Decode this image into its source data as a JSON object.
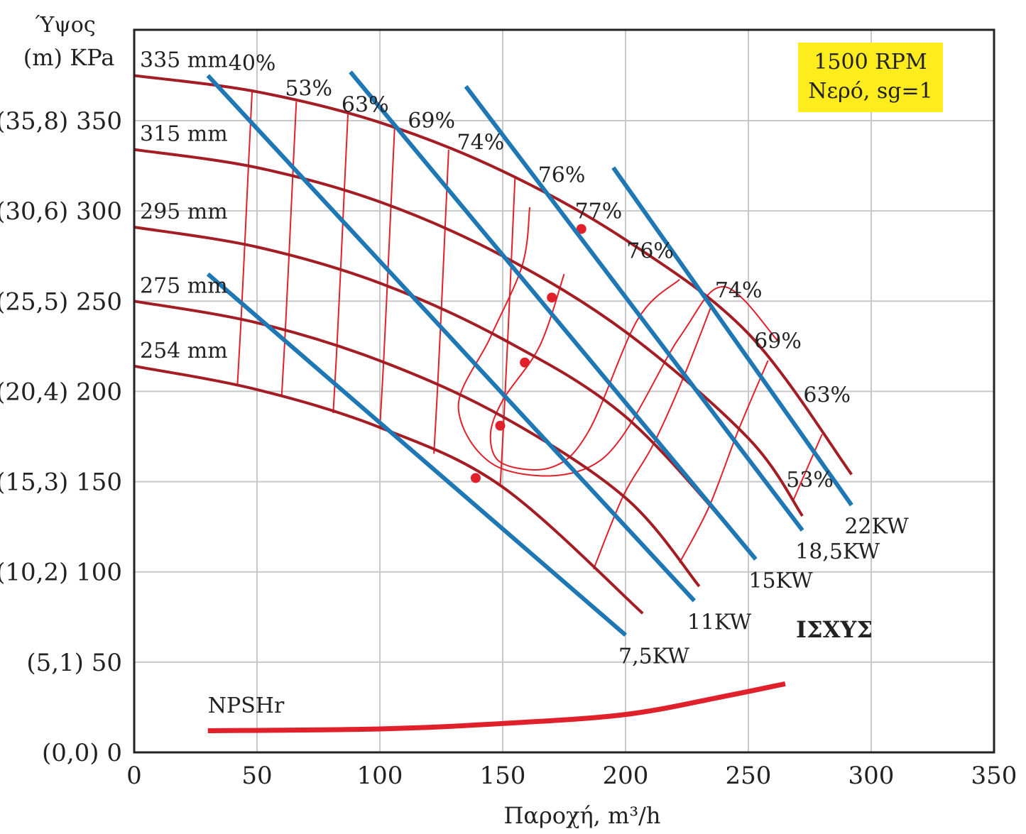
{
  "chart_data": {
    "type": "line",
    "title": "",
    "rpm_box": [
      "1500 RPM",
      "Νερό, sg=1"
    ],
    "xlabel": "Παροχή, m³/h",
    "ylabel_lines": [
      "Ύψος",
      "(m) KPa"
    ],
    "xlim": [
      0,
      350
    ],
    "ylim": [
      0,
      400
    ],
    "grid": true,
    "x_ticks": [
      {
        "value": 0,
        "label": "0"
      },
      {
        "value": 50,
        "label": "50"
      },
      {
        "value": 100,
        "label": "100"
      },
      {
        "value": 150,
        "label": "150"
      },
      {
        "value": 200,
        "label": "200"
      },
      {
        "value": 250,
        "label": "250"
      },
      {
        "value": 300,
        "label": "300"
      },
      {
        "value": 350,
        "label": "350"
      }
    ],
    "y_ticks": [
      {
        "value": 0,
        "label": "(0,0) 0"
      },
      {
        "value": 50,
        "label": "(5,1) 50"
      },
      {
        "value": 100,
        "label": "(10,2) 100"
      },
      {
        "value": 150,
        "label": "(15,3) 150"
      },
      {
        "value": 200,
        "label": "(20,4) 200"
      },
      {
        "value": 250,
        "label": "(25,5) 250"
      },
      {
        "value": 300,
        "label": "(30,6) 300"
      },
      {
        "value": 350,
        "label": "(35,8) 350"
      }
    ],
    "colors": {
      "impeller": "#a31d24",
      "power": "#1f77b4",
      "efficiency": "#e0202a",
      "npsh": "#e0202a",
      "rpm_box": "#ffec1c"
    },
    "impeller_curves": [
      {
        "name": "335 mm",
        "points": [
          [
            0,
            375
          ],
          [
            50,
            366
          ],
          [
            100,
            349
          ],
          [
            150,
            322
          ],
          [
            200,
            284
          ],
          [
            250,
            232
          ],
          [
            292,
            154
          ]
        ]
      },
      {
        "name": "315 mm",
        "points": [
          [
            0,
            334
          ],
          [
            50,
            324
          ],
          [
            100,
            305
          ],
          [
            150,
            275
          ],
          [
            200,
            233
          ],
          [
            250,
            174
          ],
          [
            272,
            131
          ]
        ]
      },
      {
        "name": "295 mm",
        "points": [
          [
            0,
            291
          ],
          [
            50,
            280
          ],
          [
            100,
            260
          ],
          [
            150,
            229
          ],
          [
            200,
            186
          ],
          [
            247,
            117
          ]
        ]
      },
      {
        "name": "275 mm",
        "points": [
          [
            0,
            250
          ],
          [
            50,
            238
          ],
          [
            100,
            217
          ],
          [
            150,
            186
          ],
          [
            200,
            141
          ],
          [
            230,
            92
          ]
        ]
      },
      {
        "name": "254 mm",
        "points": [
          [
            0,
            214
          ],
          [
            50,
            201
          ],
          [
            100,
            180
          ],
          [
            150,
            147
          ],
          [
            207,
            77
          ]
        ]
      }
    ],
    "power_lines": [
      {
        "name": "7,5KW",
        "points": [
          [
            30,
            265
          ],
          [
            200,
            65
          ]
        ]
      },
      {
        "name": "11KW",
        "points": [
          [
            30,
            375
          ],
          [
            228,
            84
          ]
        ]
      },
      {
        "name": "15KW",
        "points": [
          [
            88,
            377
          ],
          [
            253,
            107
          ]
        ]
      },
      {
        "name": "18,5KW",
        "points": [
          [
            135,
            369
          ],
          [
            272,
            123
          ]
        ]
      },
      {
        "name": "22KW",
        "points": [
          [
            195,
            324
          ],
          [
            292,
            137
          ]
        ]
      }
    ],
    "efficiency_labels": [
      {
        "label": "40%",
        "x": 48,
        "y": 378
      },
      {
        "label": "53%",
        "x": 71,
        "y": 364
      },
      {
        "label": "63%",
        "x": 94,
        "y": 355
      },
      {
        "label": "69%",
        "x": 121,
        "y": 346
      },
      {
        "label": "74%",
        "x": 141,
        "y": 334
      },
      {
        "label": "76%",
        "x": 174,
        "y": 316
      },
      {
        "label": "77%",
        "x": 189,
        "y": 296
      },
      {
        "label": "76%",
        "x": 210,
        "y": 274
      },
      {
        "label": "74%",
        "x": 246,
        "y": 252
      },
      {
        "label": "69%",
        "x": 262,
        "y": 224
      },
      {
        "label": "63%",
        "x": 282,
        "y": 194
      },
      {
        "label": "53%",
        "x": 275,
        "y": 147
      }
    ],
    "bep_points": [
      [
        182,
        290
      ],
      [
        170,
        252
      ],
      [
        159,
        216
      ],
      [
        149,
        181
      ],
      [
        139,
        152
      ]
    ],
    "npshr": {
      "name": "NPSHr",
      "points": [
        [
          30,
          12
        ],
        [
          100,
          13
        ],
        [
          150,
          16
        ],
        [
          200,
          21
        ],
        [
          240,
          31
        ],
        [
          265,
          38
        ]
      ]
    },
    "power_title": "ΙΣΧΥΣ"
  }
}
